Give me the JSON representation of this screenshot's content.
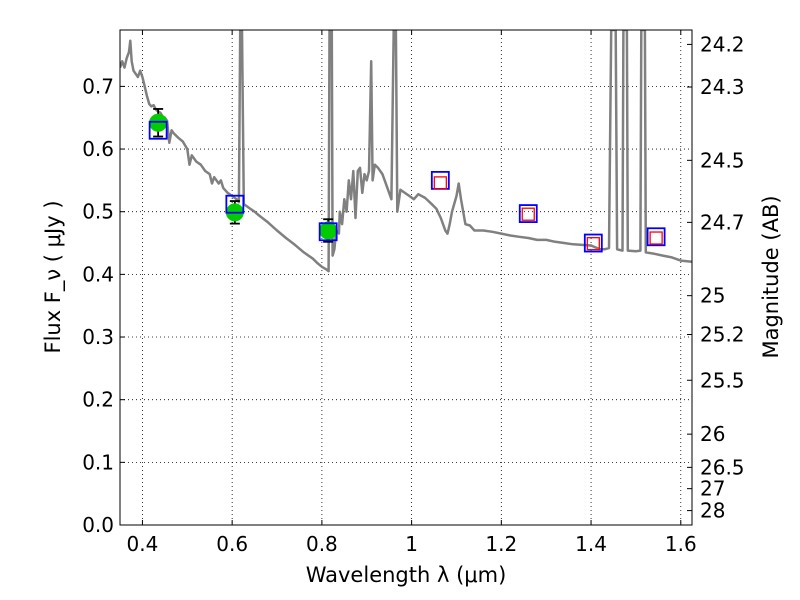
{
  "chart_data": {
    "type": "scatter",
    "xlabel": "Wavelength  λ (μm)",
    "ylabel": "Flux  F_ν  ( μJy )",
    "ylabel_right": "Magnitude (AB)",
    "xlim": [
      0.35,
      1.625
    ],
    "ylim": [
      0.0,
      0.79
    ],
    "grid": true,
    "x_ticks": [
      0.4,
      0.6,
      0.8,
      1.0,
      1.2,
      1.4,
      1.6
    ],
    "x_tick_labels": [
      "0.4",
      "0.6",
      "0.8",
      "1",
      "1.2",
      "1.4",
      "1.6"
    ],
    "y_ticks": [
      0.0,
      0.1,
      0.2,
      0.3,
      0.4,
      0.5,
      0.6,
      0.7
    ],
    "y_tick_labels": [
      "0.0",
      "0.1",
      "0.2",
      "0.3",
      "0.4",
      "0.5",
      "0.6",
      "0.7"
    ],
    "right_ticks": [
      {
        "label": "24.2",
        "flux": 0.767
      },
      {
        "label": "24.3",
        "flux": 0.699
      },
      {
        "label": "24.5",
        "flux": 0.582
      },
      {
        "label": "24.7",
        "flux": 0.483
      },
      {
        "label": "25",
        "flux": 0.366
      },
      {
        "label": "25.2",
        "flux": 0.304
      },
      {
        "label": "25.5",
        "flux": 0.231
      },
      {
        "label": "26",
        "flux": 0.145
      },
      {
        "label": "26.5",
        "flux": 0.092
      },
      {
        "label": "27",
        "flux": 0.058
      },
      {
        "label": "28",
        "flux": 0.023
      }
    ],
    "series": [
      {
        "style": "line",
        "color": "#808080",
        "points": [
          [
            0.35,
            0.73
          ],
          [
            0.355,
            0.74
          ],
          [
            0.36,
            0.73
          ],
          [
            0.365,
            0.745
          ],
          [
            0.37,
            0.755
          ],
          [
            0.373,
            0.773
          ],
          [
            0.376,
            0.74
          ],
          [
            0.38,
            0.725
          ],
          [
            0.39,
            0.715
          ],
          [
            0.395,
            0.725
          ],
          [
            0.4,
            0.715
          ],
          [
            0.405,
            0.7
          ],
          [
            0.41,
            0.685
          ],
          [
            0.415,
            0.672
          ],
          [
            0.42,
            0.668
          ],
          [
            0.425,
            0.67
          ],
          [
            0.43,
            0.663
          ],
          [
            0.435,
            0.66
          ],
          [
            0.44,
            0.658
          ],
          [
            0.445,
            0.652
          ],
          [
            0.45,
            0.65
          ],
          [
            0.455,
            0.645
          ],
          [
            0.46,
            0.61
          ],
          [
            0.465,
            0.63
          ],
          [
            0.47,
            0.625
          ],
          [
            0.48,
            0.618
          ],
          [
            0.49,
            0.612
          ],
          [
            0.5,
            0.6
          ],
          [
            0.505,
            0.575
          ],
          [
            0.51,
            0.59
          ],
          [
            0.52,
            0.58
          ],
          [
            0.53,
            0.575
          ],
          [
            0.54,
            0.565
          ],
          [
            0.55,
            0.56
          ],
          [
            0.555,
            0.545
          ],
          [
            0.56,
            0.555
          ],
          [
            0.57,
            0.545
          ],
          [
            0.575,
            0.55
          ],
          [
            0.58,
            0.538
          ],
          [
            0.59,
            0.53
          ],
          [
            0.6,
            0.525
          ],
          [
            0.61,
            0.52
          ],
          [
            0.615,
            0.515
          ],
          [
            0.618,
            0.79
          ],
          [
            0.622,
            0.79
          ],
          [
            0.626,
            0.512
          ],
          [
            0.63,
            0.51
          ],
          [
            0.64,
            0.505
          ],
          [
            0.65,
            0.5
          ],
          [
            0.66,
            0.494
          ],
          [
            0.68,
            0.483
          ],
          [
            0.7,
            0.47
          ],
          [
            0.72,
            0.458
          ],
          [
            0.74,
            0.447
          ],
          [
            0.76,
            0.435
          ],
          [
            0.78,
            0.425
          ],
          [
            0.79,
            0.418
          ],
          [
            0.8,
            0.412
          ],
          [
            0.81,
            0.408
          ],
          [
            0.815,
            0.405
          ],
          [
            0.817,
            0.79
          ],
          [
            0.822,
            0.79
          ],
          [
            0.824,
            0.43
          ],
          [
            0.828,
            0.44
          ],
          [
            0.832,
            0.47
          ],
          [
            0.838,
            0.465
          ],
          [
            0.84,
            0.5
          ],
          [
            0.845,
            0.48
          ],
          [
            0.85,
            0.52
          ],
          [
            0.855,
            0.5
          ],
          [
            0.86,
            0.55
          ],
          [
            0.865,
            0.52
          ],
          [
            0.87,
            0.565
          ],
          [
            0.875,
            0.49
          ],
          [
            0.88,
            0.565
          ],
          [
            0.885,
            0.57
          ],
          [
            0.89,
            0.53
          ],
          [
            0.895,
            0.56
          ],
          [
            0.9,
            0.55
          ],
          [
            0.905,
            0.565
          ],
          [
            0.91,
            0.74
          ],
          [
            0.913,
            0.55
          ],
          [
            0.918,
            0.575
          ],
          [
            0.925,
            0.57
          ],
          [
            0.935,
            0.56
          ],
          [
            0.945,
            0.54
          ],
          [
            0.955,
            0.52
          ],
          [
            0.96,
            0.79
          ],
          [
            0.965,
            0.79
          ],
          [
            0.968,
            0.5
          ],
          [
            0.975,
            0.535
          ],
          [
            0.985,
            0.53
          ],
          [
            0.995,
            0.525
          ],
          [
            1.005,
            0.52
          ],
          [
            1.015,
            0.528
          ],
          [
            1.03,
            0.522
          ],
          [
            1.045,
            0.512
          ],
          [
            1.055,
            0.505
          ],
          [
            1.065,
            0.49
          ],
          [
            1.075,
            0.47
          ],
          [
            1.08,
            0.465
          ],
          [
            1.085,
            0.48
          ],
          [
            1.09,
            0.5
          ],
          [
            1.1,
            0.525
          ],
          [
            1.105,
            0.545
          ],
          [
            1.11,
            0.52
          ],
          [
            1.12,
            0.48
          ],
          [
            1.13,
            0.478
          ],
          [
            1.14,
            0.47
          ],
          [
            1.16,
            0.47
          ],
          [
            1.18,
            0.468
          ],
          [
            1.2,
            0.465
          ],
          [
            1.22,
            0.462
          ],
          [
            1.24,
            0.46
          ],
          [
            1.26,
            0.458
          ],
          [
            1.28,
            0.455
          ],
          [
            1.3,
            0.455
          ],
          [
            1.32,
            0.452
          ],
          [
            1.34,
            0.45
          ],
          [
            1.36,
            0.448
          ],
          [
            1.38,
            0.447
          ],
          [
            1.4,
            0.446
          ],
          [
            1.42,
            0.44
          ],
          [
            1.43,
            0.44
          ],
          [
            1.44,
            0.442
          ],
          [
            1.445,
            0.79
          ],
          [
            1.455,
            0.79
          ],
          [
            1.458,
            0.44
          ],
          [
            1.47,
            0.438
          ],
          [
            1.472,
            0.79
          ],
          [
            1.48,
            0.79
          ],
          [
            1.482,
            0.438
          ],
          [
            1.5,
            0.437
          ],
          [
            1.51,
            0.438
          ],
          [
            1.512,
            0.79
          ],
          [
            1.52,
            0.79
          ],
          [
            1.522,
            0.435
          ],
          [
            1.54,
            0.433
          ],
          [
            1.56,
            0.43
          ],
          [
            1.58,
            0.427
          ],
          [
            1.6,
            0.422
          ],
          [
            1.625,
            0.42
          ]
        ]
      },
      {
        "style": "errorbar-circles",
        "color": "#00cc00",
        "errorbar_color": "#000000",
        "points": [
          {
            "x": 0.435,
            "y": 0.642,
            "yerr": 0.022
          },
          {
            "x": 0.606,
            "y": 0.499,
            "yerr": 0.018
          },
          {
            "x": 0.814,
            "y": 0.47,
            "yerr": 0.018
          }
        ]
      },
      {
        "style": "open-squares",
        "color": "#0000ff",
        "points": [
          [
            0.435,
            0.63
          ],
          [
            0.606,
            0.512
          ],
          [
            0.814,
            0.468
          ],
          [
            1.064,
            0.55
          ],
          [
            1.26,
            0.497
          ],
          [
            1.405,
            0.45
          ],
          [
            1.545,
            0.46
          ]
        ]
      },
      {
        "style": "open-squares-small",
        "color": "#ff0000",
        "points": [
          [
            1.064,
            0.546
          ],
          [
            1.26,
            0.496
          ],
          [
            1.405,
            0.449
          ],
          [
            1.545,
            0.458
          ]
        ]
      }
    ]
  }
}
